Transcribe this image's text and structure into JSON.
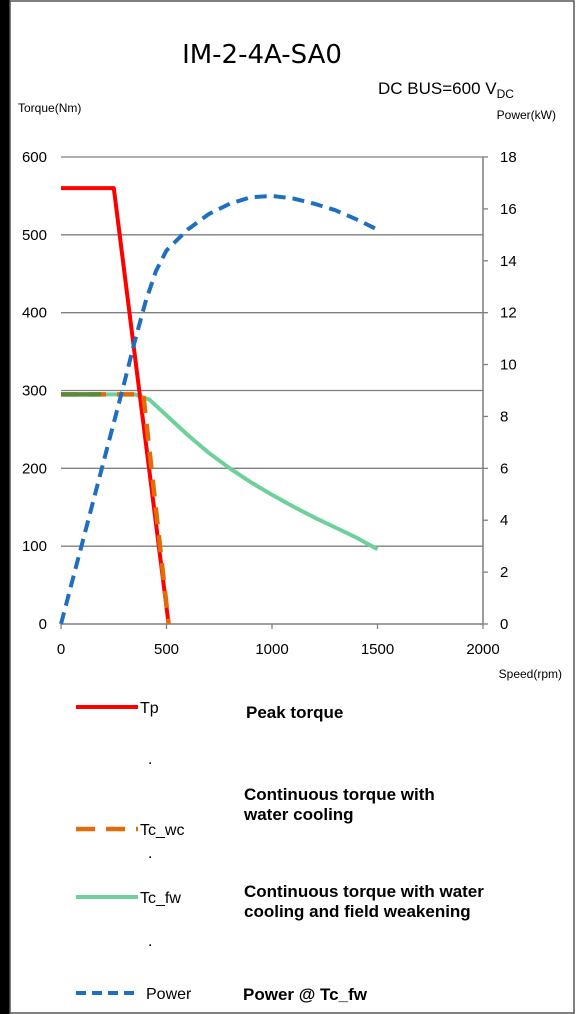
{
  "chart_data": {
    "type": "line",
    "title": "IM-2-4A-SA0",
    "subtitle_main": "DC BUS=600 V",
    "subtitle_sub": "DC",
    "ylabel_left": "Torque(Nm)",
    "ylabel_right": "Power(kW)",
    "xlabel": "Speed(rpm)",
    "xlim": [
      0,
      2000
    ],
    "ylim_left": [
      0,
      600
    ],
    "ylim_right": [
      0,
      18
    ],
    "x_ticks": [
      "0",
      "500",
      "1000",
      "1500",
      "2000"
    ],
    "y_left_ticks": [
      "0",
      "100",
      "200",
      "300",
      "400",
      "500",
      "600"
    ],
    "y_right_ticks": [
      "0",
      "2",
      "4",
      "6",
      "8",
      "10",
      "12",
      "14",
      "16",
      "18"
    ],
    "grid": "horizontal",
    "legend_position": "bottom",
    "series": [
      {
        "name": "Tp",
        "axis": "left",
        "color": "#ff0000",
        "style": "solid",
        "x": [
          0,
          250,
          510
        ],
        "y": [
          560,
          560,
          0
        ]
      },
      {
        "name": "Tc_wc",
        "axis": "left",
        "color": "#e36c0a",
        "style": "dashed",
        "x": [
          0,
          390,
          510
        ],
        "y": [
          295,
          295,
          0
        ]
      },
      {
        "name": "Tc_fw",
        "axis": "left",
        "color": "#6ed09a",
        "style": "solid",
        "x": [
          0,
          350,
          420,
          500,
          600,
          700,
          800,
          900,
          1000,
          1100,
          1200,
          1300,
          1400,
          1500
        ],
        "y": [
          295,
          295,
          288,
          268,
          243,
          220,
          200,
          182,
          166,
          151,
          137,
          124,
          111,
          96
        ]
      },
      {
        "name": "Power",
        "axis": "right",
        "color": "#1f6fc0",
        "style": "dashed",
        "x": [
          0,
          100,
          200,
          300,
          350,
          400,
          450,
          500,
          600,
          700,
          800,
          900,
          1000,
          1100,
          1200,
          1300,
          1400,
          1500
        ],
        "y": [
          0,
          3.1,
          6.2,
          9.3,
          10.9,
          12.4,
          13.6,
          14.4,
          15.2,
          15.8,
          16.2,
          16.45,
          16.5,
          16.4,
          16.2,
          15.95,
          15.6,
          15.2
        ]
      }
    ],
    "legend": [
      {
        "key": "Tp",
        "description": "Peak torque",
        "dot": "."
      },
      {
        "key": "Tc_wc",
        "description_line1": "Continuous torque with",
        "description_line2": "water cooling",
        "dot": "."
      },
      {
        "key": "Tc_fw",
        "description_line1": "Continuous torque with water",
        "description_line2": "cooling and field weakening",
        "dot": "."
      },
      {
        "key": "Power",
        "description": "Power @ Tc_fw"
      }
    ]
  }
}
